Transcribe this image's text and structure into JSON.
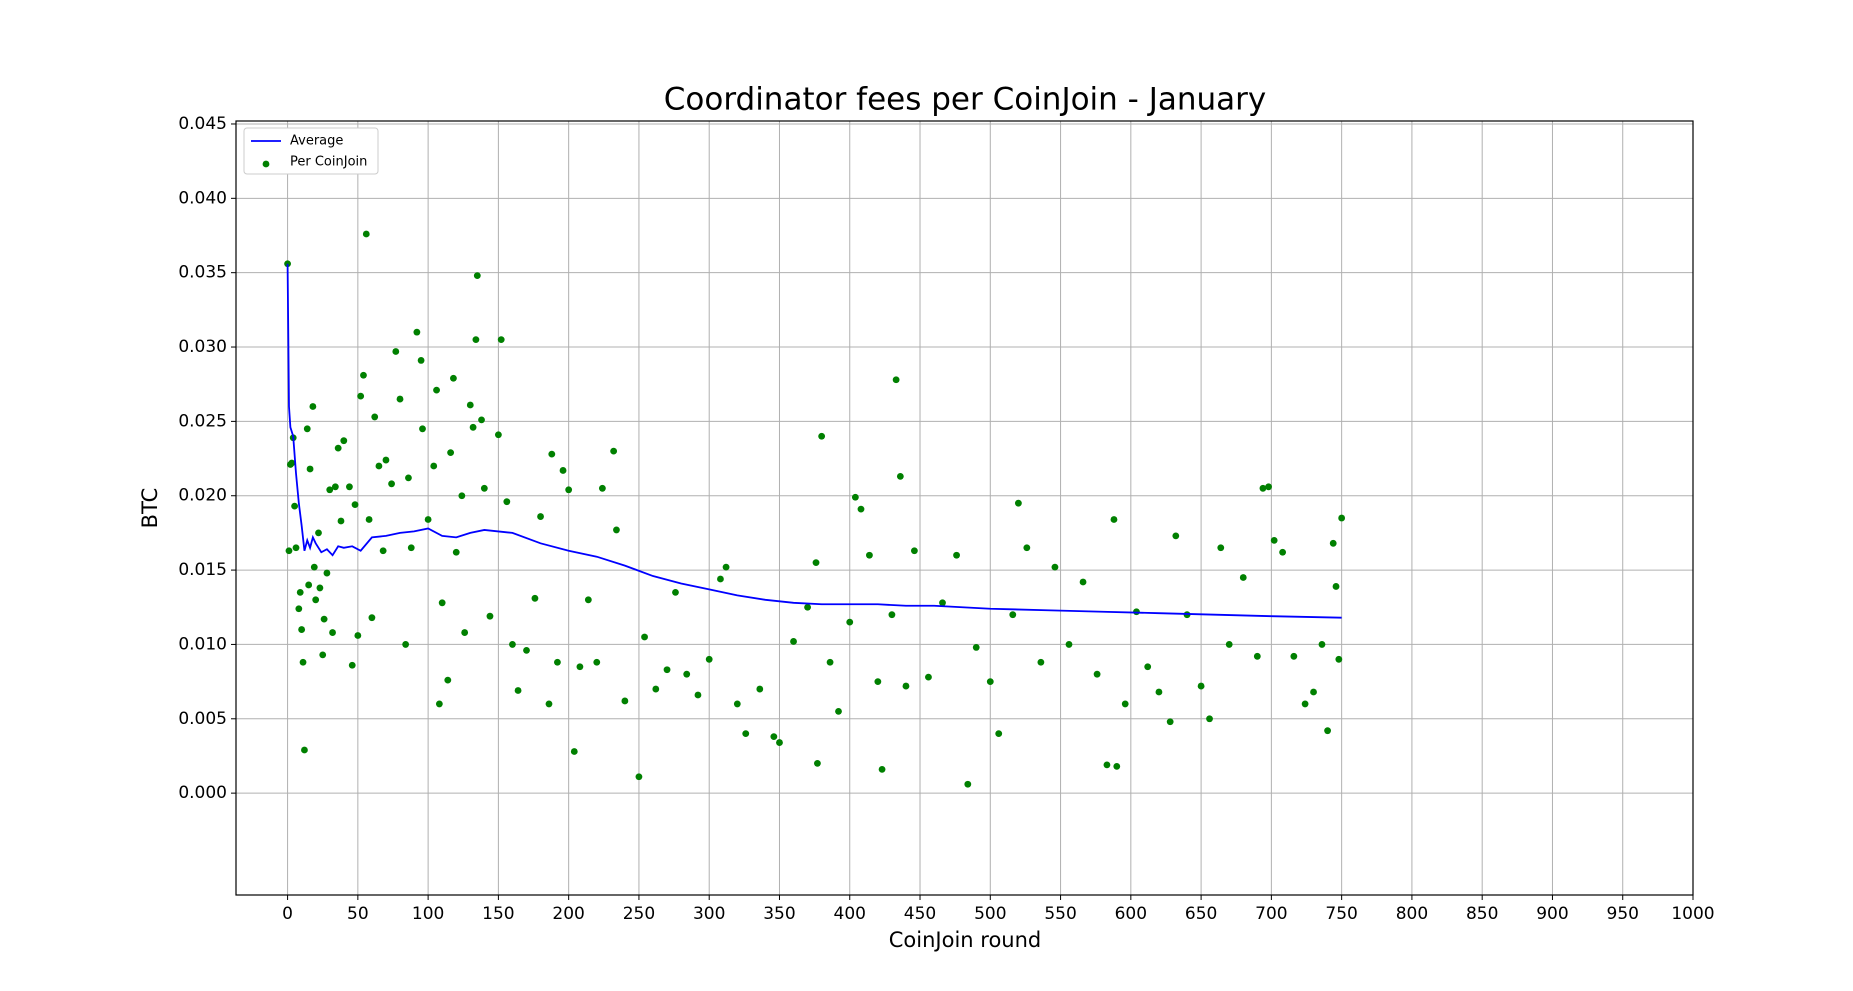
{
  "chart_data": {
    "type": "scatter",
    "title": "Coordinator fees per CoinJoin - January",
    "x_label": "CoinJoin round",
    "y_label": "BTC",
    "xlim": [
      -36.7,
      1000
    ],
    "ylim": [
      -0.00685,
      0.0452
    ],
    "xticks": [
      0,
      50,
      100,
      150,
      200,
      250,
      300,
      350,
      400,
      450,
      500,
      550,
      600,
      650,
      700,
      750,
      800,
      850,
      900,
      950,
      1000
    ],
    "yticks": [
      {
        "value": 0,
        "label": "0.000"
      },
      0.005,
      {
        "value": 0.01,
        "label": "0.010"
      },
      0.015,
      {
        "value": 0.02,
        "label": "0.020"
      },
      0.025,
      {
        "value": 0.03,
        "label": "0.030"
      },
      0.035,
      {
        "value": 0.04,
        "label": "0.040"
      },
      0.045
    ],
    "grid": true,
    "legend": "upper left",
    "series": [
      {
        "name": "Average",
        "type": "line",
        "color": "#0000ff",
        "x": [
          0,
          1,
          2,
          4,
          6,
          8,
          10,
          12,
          14,
          16,
          18,
          20,
          24,
          28,
          32,
          36,
          40,
          46,
          52,
          60,
          70,
          80,
          90,
          100,
          110,
          120,
          130,
          140,
          150,
          160,
          180,
          200,
          220,
          240,
          260,
          280,
          300,
          320,
          340,
          360,
          380,
          400,
          420,
          440,
          460,
          480,
          500,
          540,
          580,
          620,
          660,
          700,
          750
        ],
        "values": [
          0.0356,
          0.026,
          0.0246,
          0.024,
          0.0215,
          0.0195,
          0.018,
          0.0163,
          0.017,
          0.0165,
          0.0172,
          0.0168,
          0.0162,
          0.0164,
          0.016,
          0.0166,
          0.0165,
          0.0166,
          0.0163,
          0.0172,
          0.0173,
          0.0175,
          0.0176,
          0.0178,
          0.0173,
          0.0172,
          0.0175,
          0.0177,
          0.0176,
          0.0175,
          0.0168,
          0.0163,
          0.0159,
          0.0153,
          0.0146,
          0.0141,
          0.0137,
          0.0133,
          0.013,
          0.0128,
          0.0127,
          0.0127,
          0.0127,
          0.0126,
          0.0126,
          0.0125,
          0.0124,
          0.0123,
          0.0122,
          0.0121,
          0.012,
          0.0119,
          0.0118
        ]
      },
      {
        "name": "Per CoinJoin",
        "type": "scatter",
        "color": "#008000",
        "x": [
          0,
          1,
          2,
          3,
          4,
          5,
          6,
          8,
          9,
          10,
          11,
          12,
          14,
          15,
          16,
          18,
          19,
          20,
          22,
          23,
          25,
          26,
          28,
          30,
          32,
          34,
          36,
          38,
          40,
          44,
          46,
          48,
          50,
          52,
          54,
          56,
          58,
          60,
          62,
          65,
          68,
          70,
          74,
          77,
          80,
          84,
          86,
          88,
          92,
          95,
          96,
          100,
          104,
          106,
          108,
          110,
          114,
          116,
          118,
          120,
          124,
          126,
          130,
          132,
          134,
          135,
          138,
          140,
          144,
          150,
          152,
          156,
          160,
          164,
          170,
          176,
          180,
          186,
          188,
          192,
          196,
          200,
          204,
          208,
          214,
          220,
          224,
          232,
          234,
          240,
          250,
          254,
          262,
          270,
          276,
          284,
          292,
          300,
          308,
          312,
          320,
          326,
          336,
          346,
          350,
          360,
          370,
          376,
          377,
          380,
          386,
          392,
          400,
          404,
          408,
          414,
          420,
          423,
          430,
          433,
          436,
          440,
          446,
          456,
          466,
          476,
          484,
          490,
          500,
          506,
          516,
          520,
          526,
          536,
          546,
          556,
          566,
          576,
          583,
          588,
          590,
          596,
          604,
          612,
          620,
          628,
          632,
          640,
          650,
          656,
          664,
          670,
          680,
          690,
          694,
          698,
          702,
          708,
          716,
          724,
          730,
          736,
          740,
          744,
          746,
          748,
          750
        ],
        "values": [
          0.0356,
          0.0163,
          0.0221,
          0.0222,
          0.0239,
          0.0193,
          0.0165,
          0.0124,
          0.0135,
          0.011,
          0.0088,
          0.0029,
          0.0245,
          0.014,
          0.0218,
          0.026,
          0.0152,
          0.013,
          0.0175,
          0.0138,
          0.0093,
          0.0117,
          0.0148,
          0.0204,
          0.0108,
          0.0206,
          0.0232,
          0.0183,
          0.0237,
          0.0206,
          0.0086,
          0.0194,
          0.0106,
          0.0267,
          0.0281,
          0.0376,
          0.0184,
          0.0118,
          0.0253,
          0.022,
          0.0163,
          0.0224,
          0.0208,
          0.0297,
          0.0265,
          0.01,
          0.0212,
          0.0165,
          0.031,
          0.0291,
          0.0245,
          0.0184,
          0.022,
          0.0271,
          0.006,
          0.0128,
          0.0076,
          0.0229,
          0.0279,
          0.0162,
          0.02,
          0.0108,
          0.0261,
          0.0246,
          0.0305,
          0.0348,
          0.0251,
          0.0205,
          0.0119,
          0.0241,
          0.0305,
          0.0196,
          0.01,
          0.0069,
          0.0096,
          0.0131,
          0.0186,
          0.006,
          0.0228,
          0.0088,
          0.0217,
          0.0204,
          0.0028,
          0.0085,
          0.013,
          0.0088,
          0.0205,
          0.023,
          0.0177,
          0.0062,
          0.0011,
          0.0105,
          0.007,
          0.0083,
          0.0135,
          0.008,
          0.0066,
          0.009,
          0.0144,
          0.0152,
          0.006,
          0.004,
          0.007,
          0.0038,
          0.0034,
          0.0102,
          0.0125,
          0.0155,
          0.002,
          0.024,
          0.0088,
          0.0055,
          0.0115,
          0.0199,
          0.0191,
          0.016,
          0.0075,
          0.0016,
          0.012,
          0.0278,
          0.0213,
          0.0072,
          0.0163,
          0.0078,
          0.0128,
          0.016,
          0.0006,
          0.0098,
          0.0075,
          0.004,
          0.012,
          0.0195,
          0.0165,
          0.0088,
          0.0152,
          0.01,
          0.0142,
          0.008,
          0.0019,
          0.0184,
          0.0018,
          0.006,
          0.0122,
          0.0085,
          0.0068,
          0.0048,
          0.0173,
          0.012,
          0.0072,
          0.005,
          0.0165,
          0.01,
          0.0145,
          0.0092,
          0.0205,
          0.0206,
          0.017,
          0.0162,
          0.0092,
          0.006,
          0.0068,
          0.01,
          0.0042,
          0.0168,
          0.0139,
          0.009,
          0.0185
        ]
      }
    ]
  }
}
